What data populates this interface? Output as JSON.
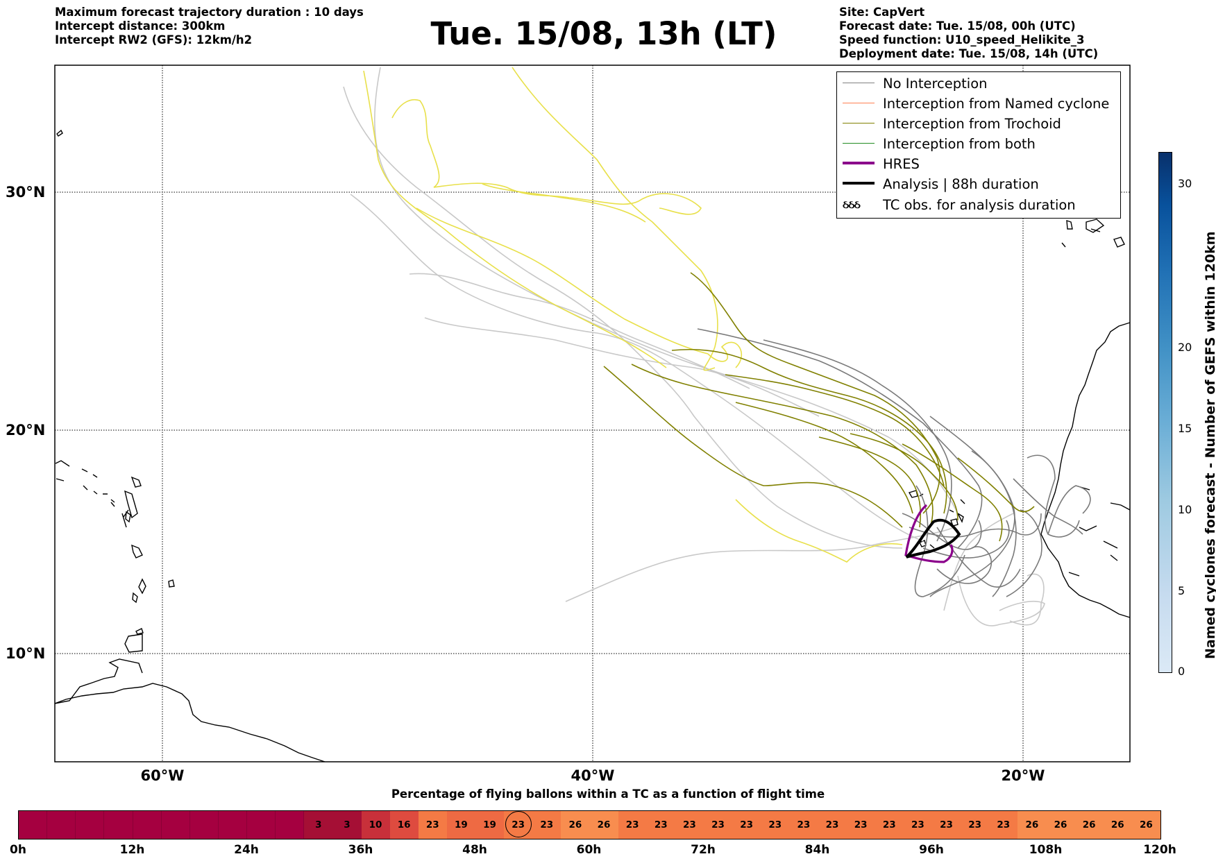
{
  "header_left": [
    "Maximum forecast trajectory duration : 10 days",
    "Intercept distance: 300km",
    "Intercept RW2 (GFS):  12km/h2"
  ],
  "title": "Tue. 15/08, 13h (LT)",
  "header_right": [
    "Site: CapVert",
    "Forecast date: Tue. 15/08, 00h (UTC)",
    "Speed function: U10_speed_Helikite_3",
    "Deployment date: Tue. 15/08, 14h (UTC)"
  ],
  "map": {
    "lat_labels": [
      "30°N",
      "20°N",
      "10°N"
    ],
    "lon_labels": [
      "60°W",
      "40°W",
      "20°W"
    ],
    "gridlines": "dotted",
    "legend_position": "top-right"
  },
  "legend": [
    {
      "label": "No Interception",
      "color": "#808080",
      "style": "line"
    },
    {
      "label": "Interception from Named cyclone",
      "color": "#ff7f50",
      "style": "line"
    },
    {
      "label": "Interception from Trochoid",
      "color": "#808000",
      "style": "line"
    },
    {
      "label": "Interception from both",
      "color": "#228b22",
      "style": "line"
    },
    {
      "label": "HRES",
      "color": "#8b008b",
      "style": "thick"
    },
    {
      "label": "Analysis | 88h duration",
      "color": "#000000",
      "style": "thick"
    },
    {
      "label": "TC obs. for analysis duration",
      "color": "#000000",
      "style": "symbol",
      "symbol": "ઠઠઠ"
    }
  ],
  "colorbar": {
    "label": "Named cyclones forecast - Number of GEFS within 120km",
    "ticks": [
      "0",
      "5",
      "10",
      "15",
      "20",
      "30"
    ],
    "range": [
      0,
      32
    ]
  },
  "timebar": {
    "title": "Percentage of flying ballons within a TC as a function of flight time",
    "tick_labels": [
      "0h",
      "12h",
      "24h",
      "36h",
      "48h",
      "60h",
      "72h",
      "84h",
      "96h",
      "108h",
      "120h"
    ],
    "max_hours": 120,
    "highlighted_cell_index": 7,
    "cells": [
      {
        "value": "3",
        "color": "#a50f35"
      },
      {
        "value": "3",
        "color": "#a50f35"
      },
      {
        "value": "10",
        "color": "#c8303a"
      },
      {
        "value": "16",
        "color": "#de4b3f"
      },
      {
        "value": "23",
        "color": "#f47a45"
      },
      {
        "value": "19",
        "color": "#ee6a43"
      },
      {
        "value": "19",
        "color": "#ee6a43"
      },
      {
        "value": "23",
        "color": "#f47a45"
      },
      {
        "value": "23",
        "color": "#f47a45"
      },
      {
        "value": "26",
        "color": "#f88d4f"
      },
      {
        "value": "26",
        "color": "#f88d4f"
      },
      {
        "value": "23",
        "color": "#f47a45"
      },
      {
        "value": "23",
        "color": "#f47a45"
      },
      {
        "value": "23",
        "color": "#f47a45"
      },
      {
        "value": "23",
        "color": "#f47a45"
      },
      {
        "value": "23",
        "color": "#f47a45"
      },
      {
        "value": "23",
        "color": "#f47a45"
      },
      {
        "value": "23",
        "color": "#f47a45"
      },
      {
        "value": "23",
        "color": "#f47a45"
      },
      {
        "value": "23",
        "color": "#f47a45"
      },
      {
        "value": "23",
        "color": "#f47a45"
      },
      {
        "value": "23",
        "color": "#f47a45"
      },
      {
        "value": "23",
        "color": "#f47a45"
      },
      {
        "value": "23",
        "color": "#f47a45"
      },
      {
        "value": "23",
        "color": "#f47a45"
      },
      {
        "value": "26",
        "color": "#f88d4f"
      },
      {
        "value": "26",
        "color": "#f88d4f"
      },
      {
        "value": "26",
        "color": "#f88d4f"
      },
      {
        "value": "26",
        "color": "#f88d4f"
      },
      {
        "value": "26",
        "color": "#f88d4f"
      }
    ],
    "empty_color": "#a50040"
  }
}
